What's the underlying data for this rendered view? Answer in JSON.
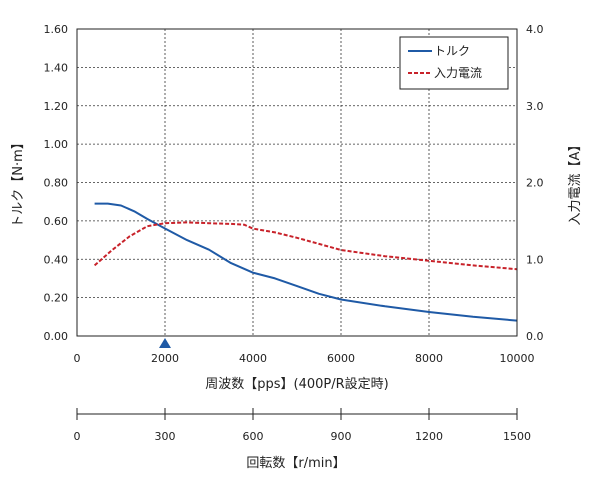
{
  "chart_data": {
    "type": "line",
    "x_axis": {
      "label": "周波数【pps】(400P/R設定時)",
      "range": [
        0,
        10000
      ],
      "ticks": [
        0,
        2000,
        4000,
        6000,
        8000,
        10000
      ],
      "tick_labels": [
        "0",
        "2000",
        "4000",
        "6000",
        "8000",
        "10000"
      ],
      "marker_at": 2000
    },
    "x2_axis": {
      "label": "回転数【r/min】",
      "range": [
        0,
        1500
      ],
      "ticks": [
        0,
        300,
        600,
        900,
        1200,
        1500
      ],
      "tick_labels": [
        "0",
        "300",
        "600",
        "900",
        "1200",
        "1500"
      ]
    },
    "y_left": {
      "label": "トルク【N·m】",
      "range": [
        0,
        1.6
      ],
      "ticks": [
        0,
        0.2,
        0.4,
        0.6,
        0.8,
        1.0,
        1.2,
        1.4,
        1.6
      ],
      "tick_labels": [
        "0.00",
        "0.20",
        "0.40",
        "0.60",
        "0.80",
        "1.00",
        "1.20",
        "1.40",
        "1.60"
      ]
    },
    "y_right": {
      "label": "入力電流【A】",
      "range": [
        0,
        4.0
      ],
      "ticks": [
        0,
        1.0,
        2.0,
        3.0,
        4.0
      ],
      "tick_labels": [
        "0.0",
        "1.0",
        "2.0",
        "3.0",
        "4.0"
      ]
    },
    "grid": true,
    "legend": {
      "placement": "top-right"
    },
    "series": [
      {
        "name": "トルク",
        "axis": "left",
        "color": "#1f5aa6",
        "style": "solid",
        "x": [
          400,
          700,
          1000,
          1300,
          1600,
          2000,
          2500,
          3000,
          3500,
          4000,
          4500,
          5000,
          5500,
          6000,
          7000,
          8000,
          9000,
          10000
        ],
        "y": [
          0.69,
          0.69,
          0.68,
          0.65,
          0.61,
          0.56,
          0.5,
          0.45,
          0.38,
          0.33,
          0.3,
          0.26,
          0.22,
          0.19,
          0.155,
          0.125,
          0.1,
          0.08
        ]
      },
      {
        "name": "入力電流",
        "axis": "right",
        "color": "#c8222a",
        "style": "dashed",
        "x": [
          400,
          800,
          1200,
          1600,
          2000,
          2500,
          3000,
          3500,
          3800,
          4000,
          4500,
          5000,
          5500,
          6000,
          7000,
          8000,
          9000,
          10000
        ],
        "y": [
          0.92,
          1.12,
          1.3,
          1.43,
          1.47,
          1.48,
          1.47,
          1.46,
          1.45,
          1.4,
          1.35,
          1.28,
          1.2,
          1.12,
          1.04,
          0.98,
          0.92,
          0.87
        ]
      }
    ]
  }
}
